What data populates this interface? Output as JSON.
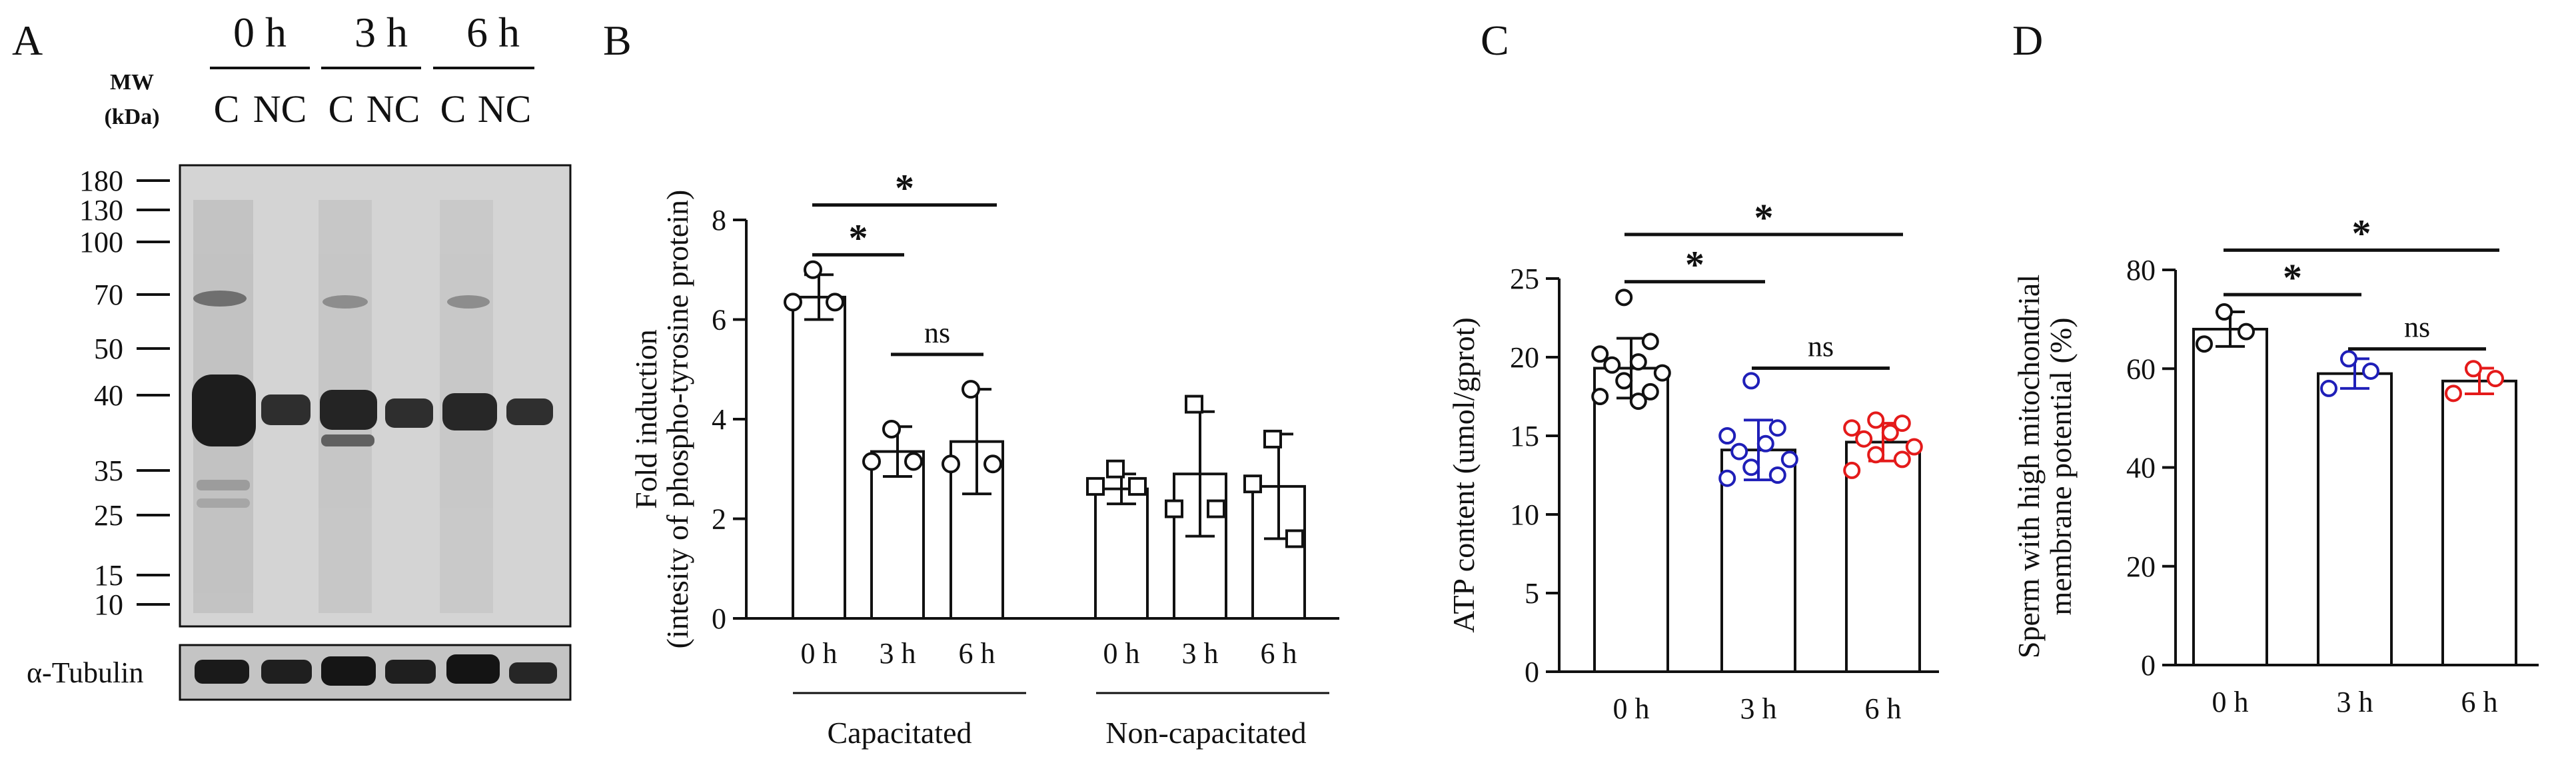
{
  "panels": {
    "A": {
      "letter": "A",
      "mw_label_1": "MW",
      "mw_label_2": "(kDa)",
      "time_headers": [
        "0 h",
        "3 h",
        "6 h"
      ],
      "lanes": [
        "C",
        "NC",
        "C",
        "NC",
        "C",
        "NC"
      ],
      "markers": [
        "180",
        "130",
        "100",
        "70",
        "50",
        "40",
        "35",
        "25",
        "15",
        "10"
      ],
      "loading_label": "α-Tubulin"
    },
    "B": {
      "letter": "B"
    },
    "C": {
      "letter": "C"
    },
    "D": {
      "letter": "D"
    }
  },
  "chart_data": [
    {
      "id": "B",
      "type": "bar",
      "ylabel_line1": "Fold induction",
      "ylabel_line2": "(intesity of phospho-tyrosine protein)",
      "ylim": [
        0,
        8
      ],
      "yticks": [
        "0",
        "2",
        "4",
        "6",
        "8"
      ],
      "groups": [
        "Capacitated",
        "Non-capacitated"
      ],
      "categories": [
        "0 h",
        "3 h",
        "6 h",
        "0 h",
        "3 h",
        "6 h"
      ],
      "values": [
        6.45,
        3.35,
        3.55,
        2.6,
        2.9,
        2.65
      ],
      "errors": [
        0.45,
        0.5,
        1.05,
        0.3,
        1.25,
        1.05
      ],
      "points": [
        [
          7.0,
          6.35,
          6.35
        ],
        [
          3.8,
          3.15,
          3.15
        ],
        [
          4.6,
          3.1,
          3.1
        ],
        [
          3.0,
          2.65,
          2.65
        ],
        [
          4.3,
          2.2,
          2.2
        ],
        [
          3.6,
          1.6,
          2.7
        ]
      ],
      "markers": [
        "circle",
        "circle",
        "circle",
        "square",
        "square",
        "square"
      ],
      "point_colors": [
        "#111111",
        "#111111",
        "#111111",
        "#111111",
        "#111111",
        "#111111"
      ],
      "significance": [
        {
          "from": 0,
          "to": 1,
          "label": "*",
          "y": 7.3
        },
        {
          "from": 0,
          "to": 2,
          "label": "*",
          "y": 8.3
        },
        {
          "from": 1,
          "to": 2,
          "label": "ns",
          "y": 5.3
        }
      ]
    },
    {
      "id": "C",
      "type": "bar",
      "ylabel_line1": "ATP content (umol/gprot)",
      "ylabel_line2": "",
      "ylim": [
        0,
        25
      ],
      "yticks": [
        "0",
        "5",
        "10",
        "15",
        "20",
        "25"
      ],
      "categories": [
        "0 h",
        "3 h",
        "6 h"
      ],
      "values": [
        19.3,
        14.1,
        14.6
      ],
      "errors": [
        1.9,
        1.9,
        1.2
      ],
      "points": [
        [
          23.8,
          21.0,
          20.2,
          19.7,
          19.5,
          19.0,
          18.5,
          17.8,
          17.5,
          17.2
        ],
        [
          18.5,
          15.5,
          15.0,
          14.5,
          14.0,
          13.5,
          13.0,
          12.5,
          12.3
        ],
        [
          16.0,
          15.8,
          15.5,
          15.2,
          14.8,
          14.3,
          13.8,
          13.5,
          12.8
        ]
      ],
      "markers": [
        "circle",
        "circle",
        "circle"
      ],
      "point_colors": [
        "#111111",
        "#1f1fb8",
        "#e41a1a"
      ],
      "significance": [
        {
          "from": 0,
          "to": 1,
          "label": "*",
          "y": 24.8
        },
        {
          "from": 0,
          "to": 2,
          "label": "*",
          "y": 27.8
        },
        {
          "from": 1,
          "to": 2,
          "label": "ns",
          "y": 19.3
        }
      ]
    },
    {
      "id": "D",
      "type": "bar",
      "ylabel_line1": "Sperm with high mitochondrial",
      "ylabel_line2": "membrane potential (%)",
      "ylim": [
        0,
        80
      ],
      "yticks": [
        "0",
        "20",
        "40",
        "60",
        "80"
      ],
      "categories": [
        "0 h",
        "3 h",
        "6 h"
      ],
      "values": [
        68,
        59,
        57.5
      ],
      "errors": [
        3.5,
        3.0,
        2.6
      ],
      "points": [
        [
          71.5,
          67.5,
          65.0
        ],
        [
          62.0,
          59.5,
          56.0
        ],
        [
          60.0,
          58.0,
          55.0
        ]
      ],
      "markers": [
        "circle",
        "circle",
        "circle"
      ],
      "point_colors": [
        "#111111",
        "#1f1fb8",
        "#e41a1a"
      ],
      "significance": [
        {
          "from": 0,
          "to": 1,
          "label": "*",
          "y": 75
        },
        {
          "from": 0,
          "to": 2,
          "label": "*",
          "y": 84
        },
        {
          "from": 1,
          "to": 2,
          "label": "ns",
          "y": 64
        }
      ]
    }
  ]
}
